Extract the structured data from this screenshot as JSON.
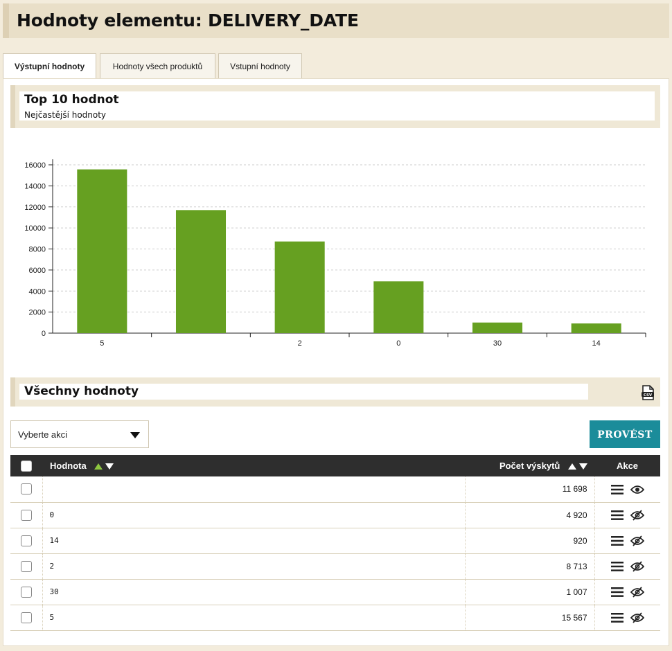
{
  "page": {
    "title": "Hodnoty elementu: DELIVERY_DATE"
  },
  "tabs": [
    {
      "label": "Výstupní hodnoty",
      "active": true
    },
    {
      "label": "Hodnoty všech produktů",
      "active": false
    },
    {
      "label": "Vstupní hodnoty",
      "active": false
    }
  ],
  "top_section": {
    "title": "Top 10 hodnot",
    "subtitle": "Nejčastější hodnoty"
  },
  "chart_data": {
    "type": "bar",
    "categories": [
      "5",
      "",
      "2",
      "0",
      "30",
      "14"
    ],
    "values": [
      15567,
      11698,
      8713,
      4920,
      1007,
      920
    ],
    "ylim": [
      0,
      16000
    ],
    "yticks": [
      0,
      2000,
      4000,
      6000,
      8000,
      10000,
      12000,
      14000,
      16000
    ],
    "grid": true,
    "bar_color": "#66a021",
    "title": "",
    "xlabel": "",
    "ylabel": ""
  },
  "all_section": {
    "title": "Všechny hodnoty",
    "csv_icon": "csv-file-icon"
  },
  "actions": {
    "select_placeholder": "Vyberte akci",
    "button_label": "PROVÉST"
  },
  "table": {
    "headers": {
      "value": "Hodnota",
      "count": "Počet výskytů",
      "actions": "Akce"
    },
    "rows": [
      {
        "value": "",
        "count": "11 698",
        "visible": true
      },
      {
        "value": "0",
        "count": "4 920",
        "visible": false
      },
      {
        "value": "14",
        "count": "920",
        "visible": false
      },
      {
        "value": "2",
        "count": "8 713",
        "visible": false
      },
      {
        "value": "30",
        "count": "1 007",
        "visible": false
      },
      {
        "value": "5",
        "count": "15 567",
        "visible": false
      }
    ]
  },
  "colors": {
    "accent": "#1b8c9a",
    "bar": "#66a021",
    "sort_active": "#8dc63f"
  }
}
